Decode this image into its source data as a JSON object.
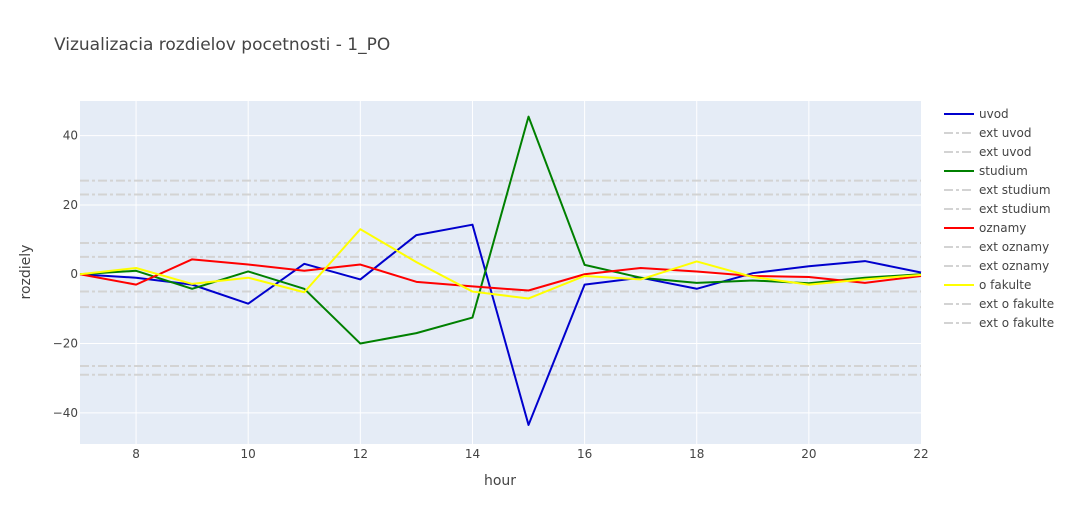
{
  "chart_data": {
    "type": "line",
    "title": "Vizualizacia rozdielov pocetnosti - 1_PO",
    "xlabel": "hour",
    "ylabel": "rozdiely",
    "xlim": [
      7,
      22
    ],
    "ylim": [
      -49,
      50
    ],
    "xticks": [
      8,
      10,
      12,
      14,
      16,
      18,
      20,
      22
    ],
    "yticks": [
      -40,
      -20,
      0,
      20,
      40
    ],
    "grid": true,
    "legend_position": "right",
    "x": [
      7,
      8,
      9,
      10,
      11,
      12,
      13,
      14,
      15,
      16,
      17,
      18,
      19,
      20,
      21,
      22
    ],
    "series": [
      {
        "name": "uvod",
        "color": "#0000cd",
        "values": [
          0,
          -1,
          -3,
          -8.5,
          3,
          -1.5,
          11.3,
          14.3,
          -43.5,
          -3,
          -1,
          -4.2,
          0.3,
          2.3,
          3.8,
          0.5
        ]
      },
      {
        "name": "studium",
        "color": "#008000",
        "values": [
          0,
          1,
          -4.2,
          0.8,
          -4.2,
          -20,
          -17,
          -12.5,
          45.5,
          2.7,
          -1,
          -2.5,
          -1.8,
          -2.6,
          -1,
          0
        ]
      },
      {
        "name": "oznamy",
        "color": "#ff0000",
        "values": [
          0,
          -3,
          4.3,
          2.8,
          1,
          2.8,
          -2.2,
          -3.5,
          -4.7,
          0,
          1.8,
          0.8,
          -0.5,
          -0.8,
          -2.5,
          -0.5
        ]
      },
      {
        "name": "o fakulte",
        "color": "#ffff00",
        "values": [
          0,
          1.8,
          -2.8,
          -1,
          -5.2,
          13,
          3.5,
          -5,
          -7,
          -0.5,
          -1.5,
          3.7,
          -0.8,
          -3,
          -1.5,
          -0.2
        ]
      }
    ],
    "reference_lines": [
      {
        "name": "ext uvod",
        "color": "#d3d3d3",
        "y": 27
      },
      {
        "name": "ext uvod",
        "color": "#d3d3d3",
        "y": -26.5
      },
      {
        "name": "ext studium",
        "color": "#d3d3d3",
        "y": 23
      },
      {
        "name": "ext studium",
        "color": "#d3d3d3",
        "y": -29
      },
      {
        "name": "ext oznamy",
        "color": "#d3d3d3",
        "y": 5
      },
      {
        "name": "ext oznamy",
        "color": "#d3d3d3",
        "y": -5
      },
      {
        "name": "ext o fakulte",
        "color": "#d3d3d3",
        "y": 9
      },
      {
        "name": "ext o fakulte",
        "color": "#d3d3d3",
        "y": -9.5
      }
    ],
    "legend_order": [
      {
        "type": "series",
        "index": 0
      },
      {
        "type": "ref",
        "index": 0
      },
      {
        "type": "ref",
        "index": 1
      },
      {
        "type": "series",
        "index": 1
      },
      {
        "type": "ref",
        "index": 2
      },
      {
        "type": "ref",
        "index": 3
      },
      {
        "type": "series",
        "index": 2
      },
      {
        "type": "ref",
        "index": 4
      },
      {
        "type": "ref",
        "index": 5
      },
      {
        "type": "series",
        "index": 3
      },
      {
        "type": "ref",
        "index": 6
      },
      {
        "type": "ref",
        "index": 7
      }
    ],
    "colors": {
      "plot_background": "#e5ecf6",
      "grid": "#ffffff",
      "text": "#444444",
      "title": "#444444"
    }
  }
}
